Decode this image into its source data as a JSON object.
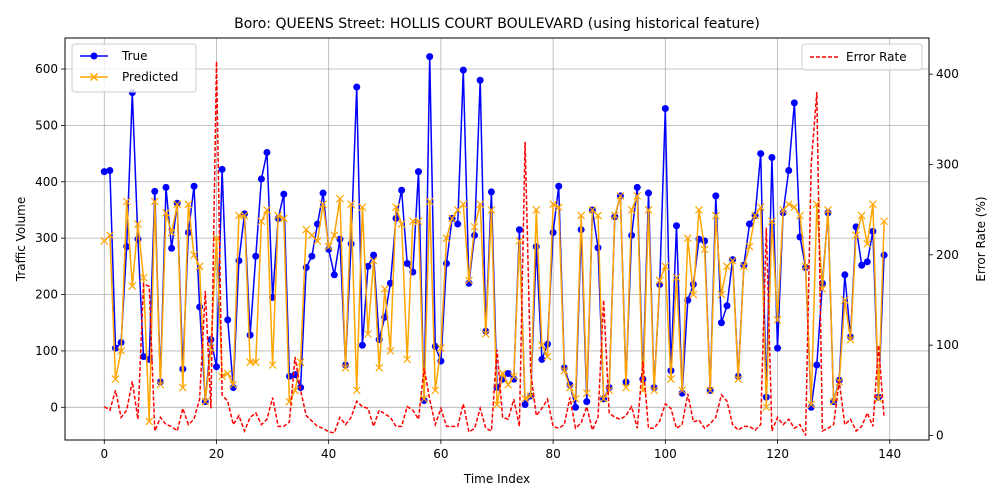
{
  "chart_data": {
    "type": "line",
    "title": "Boro: QUEENS Street: HOLLIS COURT BOULEVARD (using historical feature)",
    "xlabel": "Time Index",
    "ylabel": "Traffic Volume",
    "y2label": "Error Rate (%)",
    "xlim": [
      -7,
      147
    ],
    "ylim": [
      -58,
      655
    ],
    "y2lim": [
      -5,
      440
    ],
    "x_ticks": [
      0,
      20,
      40,
      60,
      80,
      100,
      120,
      140
    ],
    "y_ticks": [
      0,
      100,
      200,
      300,
      400,
      500,
      600
    ],
    "y2_ticks": [
      0,
      100,
      200,
      300,
      400
    ],
    "grid": true,
    "legend_left_placement": "upper-left",
    "legend_right_placement": "upper-right",
    "series": [
      {
        "name": "True",
        "axis": "left",
        "color": "#0000ff",
        "marker": "circle",
        "values": [
          418,
          420,
          105,
          115,
          285,
          558,
          298,
          90,
          85,
          383,
          45,
          390,
          282,
          362,
          68,
          310,
          392,
          178,
          10,
          120,
          72,
          422,
          155,
          35,
          260,
          343,
          128,
          268,
          405,
          452,
          195,
          335,
          378,
          55,
          58,
          35,
          248,
          268,
          325,
          380,
          280,
          235,
          298,
          75,
          290,
          568,
          110,
          250,
          270,
          120,
          160,
          220,
          335,
          385,
          255,
          240,
          418,
          12,
          622,
          108,
          82,
          255,
          335,
          325,
          598,
          220,
          305,
          580,
          135,
          382,
          35,
          50,
          60,
          50,
          315,
          5,
          20,
          285,
          85,
          112,
          310,
          392,
          70,
          40,
          0,
          315,
          10,
          350,
          283,
          15,
          35,
          338,
          375,
          45,
          305,
          390,
          50,
          380,
          35,
          218,
          530,
          65,
          322,
          25,
          190,
          218,
          298,
          295,
          30,
          375,
          150,
          180,
          262,
          55,
          252,
          325,
          340,
          450,
          18,
          443,
          105,
          345,
          420,
          540,
          302,
          248,
          0,
          75,
          220,
          345,
          10,
          48,
          235,
          125,
          320,
          252,
          258,
          312,
          18,
          270
        ],
        "labels": [
          "True"
        ]
      },
      {
        "name": "Predicted",
        "axis": "left",
        "color": "#ffa500",
        "marker": "x",
        "values": [
          295,
          305,
          50,
          100,
          365,
          215,
          325,
          230,
          -25,
          365,
          40,
          345,
          310,
          360,
          35,
          360,
          270,
          250,
          10,
          105,
          300,
          55,
          60,
          40,
          340,
          340,
          80,
          80,
          330,
          350,
          75,
          340,
          335,
          10,
          30,
          80,
          315,
          305,
          295,
          360,
          285,
          305,
          370,
          70,
          360,
          30,
          355,
          130,
          260,
          70,
          210,
          100,
          355,
          325,
          85,
          330,
          330,
          15,
          365,
          30,
          105,
          300,
          335,
          350,
          360,
          225,
          320,
          360,
          130,
          350,
          5,
          60,
          40,
          55,
          295,
          15,
          20,
          350,
          110,
          90,
          360,
          355,
          65,
          35,
          15,
          340,
          25,
          350,
          340,
          15,
          30,
          340,
          375,
          35,
          350,
          375,
          30,
          350,
          30,
          225,
          250,
          50,
          230,
          30,
          300,
          200,
          350,
          280,
          30,
          340,
          200,
          250,
          260,
          50,
          250,
          285,
          340,
          355,
          0,
          330,
          155,
          350,
          360,
          355,
          340,
          250,
          5,
          360,
          210,
          350,
          10,
          45,
          190,
          120,
          305,
          340,
          290,
          360,
          15,
          330
        ]
      },
      {
        "name": "Error Rate",
        "axis": "right",
        "color": "#ff0000",
        "dashed": true,
        "values": [
          32,
          28,
          50,
          20,
          28,
          60,
          18,
          168,
          165,
          5,
          20,
          12,
          10,
          5,
          30,
          12,
          18,
          40,
          160,
          30,
          414,
          45,
          38,
          12,
          22,
          5,
          20,
          25,
          12,
          18,
          42,
          10,
          10,
          15,
          87,
          50,
          22,
          16,
          10,
          8,
          4,
          3,
          20,
          12,
          20,
          38,
          32,
          30,
          10,
          28,
          24,
          20,
          10,
          10,
          32,
          28,
          18,
          75,
          40,
          12,
          30,
          10,
          10,
          10,
          35,
          4,
          8,
          30,
          8,
          5,
          95,
          20,
          18,
          40,
          10,
          325,
          70,
          22,
          30,
          40,
          10,
          8,
          12,
          42,
          8,
          14,
          32,
          6,
          20,
          150,
          25,
          20,
          18,
          22,
          32,
          8,
          82,
          8,
          8,
          16,
          35,
          30,
          8,
          12,
          46,
          15,
          17,
          8,
          13,
          20,
          45,
          38,
          12,
          6,
          10,
          10,
          6,
          12,
          230,
          5,
          20,
          12,
          18,
          8,
          12,
          0,
          300,
          380,
          5,
          8,
          12,
          60,
          12,
          18,
          5,
          10,
          25,
          10,
          100,
          20
        ]
      }
    ]
  }
}
